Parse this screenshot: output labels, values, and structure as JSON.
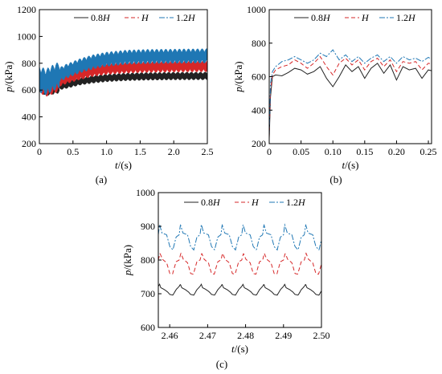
{
  "chart_data": [
    {
      "type": "line",
      "panel_label": "(a)",
      "xlabel": "t/(s)",
      "ylabel": "p/(kPa)",
      "xlim": [
        0,
        2.5
      ],
      "ylim": [
        200,
        1200
      ],
      "xticks": [
        0,
        0.5,
        1.0,
        1.5,
        2.0,
        2.5
      ],
      "xtick_labels": [
        "0",
        "0.5",
        "1.0",
        "1.5",
        "2.0",
        "2.5"
      ],
      "yticks": [
        200,
        400,
        600,
        800,
        1000,
        1200
      ],
      "ytick_labels": [
        "200",
        "400",
        "600",
        "800",
        "1000",
        "1200"
      ],
      "legend_position": "top-right",
      "legend_labels": [
        "0.8H",
        "H",
        "1.2H"
      ],
      "series": [
        {
          "name": "0.8H",
          "color": "#222222",
          "dash": "solid",
          "band": 30,
          "x": [
            0,
            0.1,
            0.2,
            0.4,
            0.6,
            0.8,
            1.0,
            1.3,
            1.6,
            2.0,
            2.5
          ],
          "y": [
            640,
            610,
            620,
            640,
            665,
            680,
            690,
            698,
            702,
            704,
            705
          ]
        },
        {
          "name": "H",
          "color": "#d62728",
          "dash": "dashed",
          "band": 45,
          "x": [
            0,
            0.1,
            0.2,
            0.4,
            0.6,
            0.8,
            1.0,
            1.3,
            1.6,
            2.0,
            2.5
          ],
          "y": [
            660,
            630,
            650,
            690,
            720,
            745,
            760,
            770,
            775,
            778,
            780
          ]
        },
        {
          "name": "1.2H",
          "color": "#1f77b4",
          "dash": "dashdot",
          "band": 55,
          "x": [
            0,
            0.1,
            0.2,
            0.4,
            0.6,
            0.8,
            1.0,
            1.3,
            1.6,
            2.0,
            2.5
          ],
          "y": [
            680,
            660,
            690,
            740,
            780,
            810,
            830,
            845,
            850,
            852,
            855
          ]
        }
      ]
    },
    {
      "type": "line",
      "panel_label": "(b)",
      "xlabel": "t/(s)",
      "ylabel": "p/(kPa)",
      "xlim": [
        0,
        0.255
      ],
      "ylim": [
        200,
        1000
      ],
      "xticks": [
        0,
        0.05,
        0.1,
        0.15,
        0.2,
        0.25
      ],
      "xtick_labels": [
        "0",
        "0.05",
        "0.10",
        "0.15",
        "0.20",
        "0.25"
      ],
      "yticks": [
        200,
        400,
        600,
        800,
        1000
      ],
      "ytick_labels": [
        "200",
        "400",
        "600",
        "800",
        "1000"
      ],
      "legend_position": "top-right",
      "legend_labels": [
        "0.8H",
        "H",
        "1.2H"
      ],
      "series": [
        {
          "name": "0.8H",
          "color": "#222222",
          "dash": "solid",
          "x": [
            0,
            0.002,
            0.005,
            0.01,
            0.02,
            0.03,
            0.04,
            0.05,
            0.06,
            0.07,
            0.08,
            0.09,
            0.1,
            0.11,
            0.12,
            0.13,
            0.14,
            0.15,
            0.16,
            0.17,
            0.18,
            0.19,
            0.2,
            0.21,
            0.22,
            0.23,
            0.24,
            0.25,
            0.255
          ],
          "y": [
            230,
            480,
            600,
            610,
            605,
            625,
            650,
            640,
            615,
            630,
            660,
            590,
            540,
            600,
            670,
            630,
            660,
            590,
            650,
            680,
            620,
            670,
            580,
            660,
            640,
            650,
            590,
            640,
            635
          ]
        },
        {
          "name": "H",
          "color": "#d62728",
          "dash": "dashed",
          "x": [
            0,
            0.002,
            0.005,
            0.01,
            0.02,
            0.03,
            0.04,
            0.05,
            0.06,
            0.07,
            0.08,
            0.09,
            0.1,
            0.11,
            0.12,
            0.13,
            0.14,
            0.15,
            0.16,
            0.17,
            0.18,
            0.19,
            0.2,
            0.21,
            0.22,
            0.23,
            0.24,
            0.25,
            0.255
          ],
          "y": [
            240,
            520,
            610,
            640,
            660,
            670,
            700,
            680,
            650,
            680,
            720,
            660,
            610,
            680,
            710,
            670,
            700,
            640,
            690,
            710,
            660,
            700,
            630,
            690,
            680,
            690,
            640,
            680,
            675
          ]
        },
        {
          "name": "1.2H",
          "color": "#1f77b4",
          "dash": "dashdot",
          "x": [
            0,
            0.002,
            0.005,
            0.01,
            0.02,
            0.03,
            0.04,
            0.05,
            0.06,
            0.07,
            0.08,
            0.09,
            0.1,
            0.11,
            0.12,
            0.13,
            0.14,
            0.15,
            0.16,
            0.17,
            0.18,
            0.19,
            0.2,
            0.21,
            0.22,
            0.23,
            0.24,
            0.25,
            0.255
          ],
          "y": [
            250,
            560,
            630,
            660,
            690,
            700,
            720,
            700,
            680,
            700,
            740,
            720,
            760,
            700,
            730,
            690,
            720,
            680,
            710,
            730,
            690,
            720,
            680,
            720,
            700,
            710,
            690,
            715,
            705
          ]
        }
      ]
    },
    {
      "type": "line",
      "panel_label": "(c)",
      "xlabel": "t/(s)",
      "ylabel": "p/(kPa)",
      "xlim": [
        2.457,
        2.5
      ],
      "ylim": [
        600,
        1000
      ],
      "xticks": [
        2.46,
        2.47,
        2.48,
        2.49,
        2.5
      ],
      "xtick_labels": [
        "2.46",
        "2.47",
        "2.48",
        "2.49",
        "2.50"
      ],
      "yticks": [
        600,
        700,
        800,
        900,
        1000
      ],
      "ytick_labels": [
        "600",
        "700",
        "800",
        "900",
        "1000"
      ],
      "legend_position": "top-right",
      "legend_labels": [
        "0.8H",
        "H",
        "1.2H"
      ],
      "series": [
        {
          "name": "0.8H",
          "color": "#222222",
          "dash": "solid",
          "period": 0.0055,
          "profile": [
            [
              0,
              722
            ],
            [
              0.06,
              728
            ],
            [
              0.12,
              718
            ],
            [
              0.3,
              712
            ],
            [
              0.45,
              705
            ],
            [
              0.55,
              698
            ],
            [
              0.7,
              696
            ],
            [
              0.85,
              712
            ],
            [
              1,
              722
            ]
          ]
        },
        {
          "name": "H",
          "color": "#d62728",
          "dash": "dashed",
          "period": 0.0055,
          "profile": [
            [
              0,
              800
            ],
            [
              0.08,
              820
            ],
            [
              0.2,
              802
            ],
            [
              0.4,
              792
            ],
            [
              0.55,
              760
            ],
            [
              0.68,
              758
            ],
            [
              0.85,
              795
            ],
            [
              1,
              800
            ]
          ]
        },
        {
          "name": "1.2H",
          "color": "#1f77b4",
          "dash": "dashdot",
          "period": 0.0055,
          "profile": [
            [
              0,
              875
            ],
            [
              0.06,
              905
            ],
            [
              0.18,
              880
            ],
            [
              0.4,
              875
            ],
            [
              0.55,
              840
            ],
            [
              0.7,
              830
            ],
            [
              0.85,
              868
            ],
            [
              1,
              875
            ]
          ]
        }
      ]
    }
  ]
}
